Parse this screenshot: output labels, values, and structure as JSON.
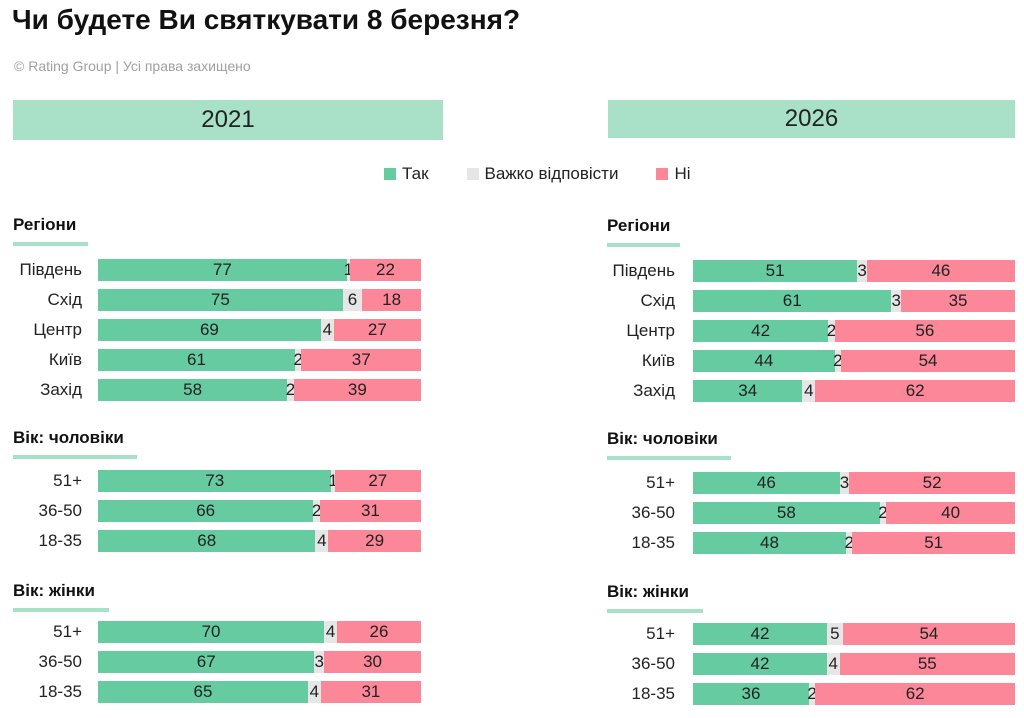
{
  "title": "Чи будете Ви святкувати 8 березня?",
  "subtitle": "© Rating Group | Усі права захищено",
  "colors": {
    "yes": "#66cba1",
    "hard": "#e6e6e6",
    "no": "#fc8799",
    "banner": "#a8e0c8"
  },
  "legend": [
    {
      "label": "Так",
      "key": "yes"
    },
    {
      "label": "Важко відповісти",
      "key": "hard"
    },
    {
      "label": "Ні",
      "key": "no"
    }
  ],
  "chart_data": [
    {
      "type": "bar",
      "stacked": true,
      "orientation": "horizontal",
      "title": "2021",
      "series_order": [
        "Так",
        "Важко відповісти",
        "Ні"
      ],
      "groups": [
        {
          "title": "Регіони",
          "rows": [
            {
              "label": "Південь",
              "values": [
                77,
                1,
                22
              ]
            },
            {
              "label": "Схід",
              "values": [
                75,
                6,
                18
              ]
            },
            {
              "label": "Центр",
              "values": [
                69,
                4,
                27
              ]
            },
            {
              "label": "Київ",
              "values": [
                61,
                2,
                37
              ]
            },
            {
              "label": "Захід",
              "values": [
                58,
                2,
                39
              ]
            }
          ]
        },
        {
          "title": "Вік: чоловіки",
          "rows": [
            {
              "label": "51+",
              "values": [
                73,
                1,
                27
              ]
            },
            {
              "label": "36-50",
              "values": [
                66,
                2,
                31
              ]
            },
            {
              "label": "18-35",
              "values": [
                68,
                4,
                29
              ]
            }
          ]
        },
        {
          "title": "Вік: жінки",
          "rows": [
            {
              "label": "51+",
              "values": [
                70,
                4,
                26
              ]
            },
            {
              "label": "36-50",
              "values": [
                67,
                3,
                30
              ]
            },
            {
              "label": "18-35",
              "values": [
                65,
                4,
                31
              ]
            }
          ]
        }
      ]
    },
    {
      "type": "bar",
      "stacked": true,
      "orientation": "horizontal",
      "title": "2026",
      "series_order": [
        "Так",
        "Важко відповісти",
        "Ні"
      ],
      "groups": [
        {
          "title": "Регіони",
          "rows": [
            {
              "label": "Південь",
              "values": [
                51,
                3,
                46
              ]
            },
            {
              "label": "Схід",
              "values": [
                61,
                3,
                35
              ]
            },
            {
              "label": "Центр",
              "values": [
                42,
                2,
                56
              ]
            },
            {
              "label": "Київ",
              "values": [
                44,
                2,
                54
              ]
            },
            {
              "label": "Захід",
              "values": [
                34,
                4,
                62
              ]
            }
          ]
        },
        {
          "title": "Вік: чоловіки",
          "rows": [
            {
              "label": "51+",
              "values": [
                46,
                3,
                52
              ]
            },
            {
              "label": "36-50",
              "values": [
                58,
                2,
                40
              ]
            },
            {
              "label": "18-35",
              "values": [
                48,
                2,
                51
              ]
            }
          ]
        },
        {
          "title": "Вік: жінки",
          "rows": [
            {
              "label": "51+",
              "values": [
                42,
                5,
                54
              ]
            },
            {
              "label": "36-50",
              "values": [
                42,
                4,
                55
              ]
            },
            {
              "label": "18-35",
              "values": [
                36,
                2,
                62
              ]
            }
          ]
        }
      ]
    }
  ]
}
